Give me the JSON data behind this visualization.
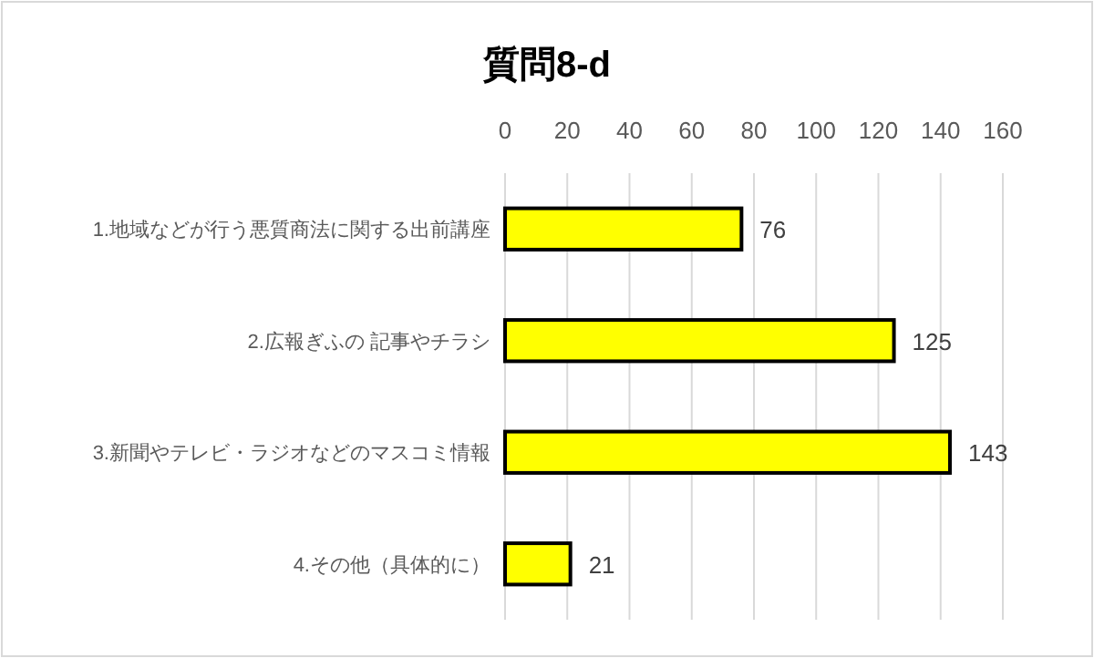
{
  "chart_data": {
    "type": "bar",
    "orientation": "horizontal",
    "title": "質問8-d",
    "categories": [
      "1.地域などが行う悪質商法に関する出前講座",
      "2.広報ぎふの 記事やチラシ",
      "3.新聞やテレビ・ラジオなどのマスコミ情報",
      "4.その他（具体的に）"
    ],
    "values": [
      76,
      125,
      143,
      21
    ],
    "color": "#ffff00",
    "xlim": [
      0,
      160
    ],
    "xticks": [
      0,
      20,
      40,
      60,
      80,
      100,
      120,
      140,
      160
    ],
    "grid": "x",
    "data_labels": true
  }
}
